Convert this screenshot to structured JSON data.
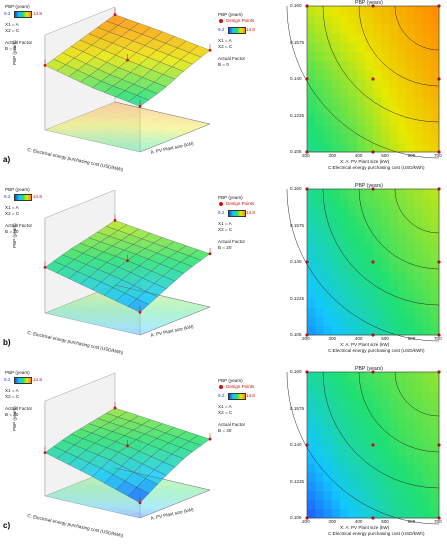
{
  "legend": {
    "response": "PBP (years)",
    "low": "9.2",
    "high": "14.8",
    "design_points": "Design Points",
    "x1": "X1 = A",
    "x2": "X2 = C",
    "actual_factor": "Actual Factor"
  },
  "panels": [
    {
      "label": "a)",
      "factor_b": "B = 0"
    },
    {
      "label": "b)",
      "factor_b": "B = 20"
    },
    {
      "label": "c)",
      "factor_b": "B = 40"
    }
  ],
  "surface_axes": {
    "z_label": "PBP (years)",
    "x_label": "A: PV Plant size (kW)",
    "y_label": "C: Electrical energy purchasing cost (USD/kWh)",
    "x_ticks": [
      "200",
      "300",
      "400",
      "500",
      "600",
      "700"
    ],
    "y_ticks": [
      "0.105",
      "0.1225",
      "0.14",
      "0.1575",
      "0.175"
    ]
  },
  "contour_axes": {
    "title": "PBP (years)",
    "x_label": "X: A: PV Plant size (kW)",
    "y_label": "C:Electrical energy purchasing cost (USD/kWh)",
    "x_ticks": [
      "200",
      "300",
      "400",
      "500",
      "600",
      "700"
    ],
    "y_ticks": [
      "0.105",
      "0.1225",
      "0.140",
      "0.1575",
      "0.160"
    ]
  },
  "colors": {
    "c_blue": "#1f3cff",
    "c_cyan": "#12c7ff",
    "c_green": "#20e070",
    "c_yellow": "#e8e800",
    "c_orange": "#ff8a00",
    "design_point": "#cc1111"
  },
  "chart_data": [
    {
      "type": "heatmap",
      "panel": "a",
      "factor_B": 0,
      "x": [
        200,
        700
      ],
      "y": [
        0.105,
        0.16
      ],
      "z_min": 9.2,
      "z_max": 14.8,
      "grid_levels": [
        [
          0.45,
          0.55,
          0.7,
          0.82
        ],
        [
          0.55,
          0.66,
          0.8,
          0.92
        ],
        [
          0.7,
          0.8,
          0.9,
          1.0
        ]
      ]
    },
    {
      "type": "heatmap",
      "panel": "b",
      "factor_B": 20,
      "x": [
        200,
        700
      ],
      "y": [
        0.105,
        0.16
      ],
      "z_min": 9.2,
      "z_max": 14.8,
      "grid_levels": [
        [
          0.15,
          0.3,
          0.45,
          0.55
        ],
        [
          0.3,
          0.45,
          0.55,
          0.62
        ],
        [
          0.45,
          0.55,
          0.62,
          0.7
        ]
      ]
    },
    {
      "type": "heatmap",
      "panel": "c",
      "factor_B": 40,
      "x": [
        200,
        700
      ],
      "y": [
        0.105,
        0.16
      ],
      "z_min": 9.2,
      "z_max": 14.8,
      "grid_levels": [
        [
          0.05,
          0.25,
          0.42,
          0.52
        ],
        [
          0.25,
          0.42,
          0.52,
          0.58
        ],
        [
          0.42,
          0.52,
          0.58,
          0.64
        ]
      ]
    }
  ]
}
